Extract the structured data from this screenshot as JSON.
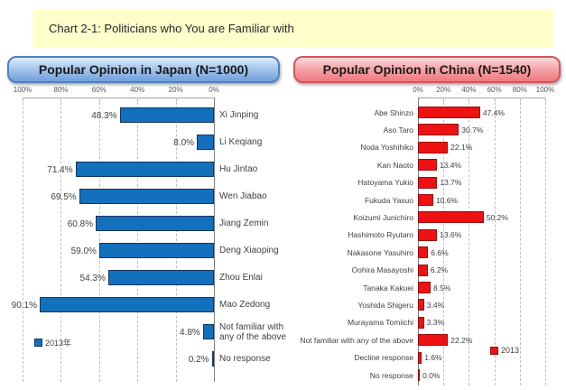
{
  "title": "Chart 2-1: Politicians who You are Familiar with",
  "japan": {
    "header": "Popular Opinion in Japan (N=1000)",
    "legend": "2013年",
    "axis_ticks": [
      "100%",
      "80%",
      "60%",
      "40%",
      "20%",
      "0%"
    ],
    "bar_color": "#1270BD"
  },
  "china": {
    "header": "Popular Opinion in China (N=1540)",
    "legend": "2013",
    "axis_ticks": [
      "0%",
      "20%",
      "40%",
      "60%",
      "80%",
      "100%"
    ],
    "bar_color": "#EE1111"
  },
  "chart_data": [
    {
      "type": "bar",
      "title": "Popular Opinion in Japan (N=1000)",
      "orientation": "horizontal",
      "value_axis_position": "top",
      "value_axis_direction": "reversed (100% at left, 0% at right)",
      "xlim": [
        0,
        100
      ],
      "grid": true,
      "legend_position": "bottom-left",
      "series": [
        {
          "name": "2013年",
          "color": "#1270BD"
        }
      ],
      "categories": [
        "Xi Jinping",
        "Li Keqiang",
        "Hu Jintao",
        "Wen Jiabao",
        "Jiang Zemin",
        "Deng Xiaoping",
        "Zhou Enlai",
        "Mao Zedong",
        "Not familiar with any of the above",
        "No response"
      ],
      "values": [
        48.3,
        8.0,
        71.4,
        69.5,
        60.8,
        59.0,
        54.3,
        90.1,
        4.8,
        0.2
      ],
      "xlabel": "",
      "ylabel": ""
    },
    {
      "type": "bar",
      "title": "Popular Opinion in China (N=1540)",
      "orientation": "horizontal",
      "value_axis_position": "top",
      "value_axis_direction": "normal (0% at left, 100% at right)",
      "xlim": [
        0,
        100
      ],
      "grid": true,
      "legend_position": "bottom-right",
      "series": [
        {
          "name": "2013",
          "color": "#EE1111"
        }
      ],
      "categories": [
        "Abe Shinzo",
        "Aso Taro",
        "Noda Yoshihiko",
        "Kan Naoto",
        "Hatoyama Yukio",
        "Fukuda Yasuo",
        "Koizumi Junichiro",
        "Hashimoto Ryutaro",
        "Nakasone Yasuhiro",
        "Oohira Masayoshi",
        "Tanaka Kakuei",
        "Yoshida Shigeru",
        "Murayama Tomiichi",
        "Not familiar with any of the above",
        "Decline response",
        "No response"
      ],
      "values": [
        47.4,
        30.7,
        22.1,
        13.4,
        13.7,
        10.6,
        50.2,
        13.6,
        6.6,
        6.2,
        8.5,
        3.4,
        3.3,
        22.2,
        1.6,
        0.0
      ],
      "xlabel": "",
      "ylabel": ""
    }
  ]
}
